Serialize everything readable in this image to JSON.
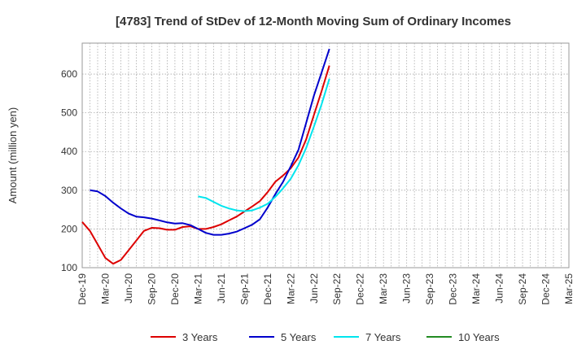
{
  "chart_data": {
    "type": "line",
    "title": "[4783]  Trend of StDev of 12-Month Moving Sum of Ordinary Incomes",
    "ylabel": "Amount (million yen)",
    "xlabel": "",
    "ylim": [
      100,
      680
    ],
    "yticks": [
      100,
      200,
      300,
      400,
      500,
      600
    ],
    "x_tick_labels": [
      "Dec-19",
      "Mar-20",
      "Jun-20",
      "Sep-20",
      "Dec-20",
      "Mar-21",
      "Jun-21",
      "Sep-21",
      "Dec-21",
      "Mar-22",
      "Jun-22",
      "Sep-22",
      "Dec-22",
      "Mar-23",
      "Jun-23",
      "Sep-23",
      "Dec-23",
      "Mar-24",
      "Jun-24",
      "Sep-24",
      "Dec-24",
      "Mar-25"
    ],
    "grid": true,
    "legend_position": "bottom",
    "series": [
      {
        "name": "3 Years",
        "color": "#dd0000",
        "points": [
          [
            0,
            218
          ],
          [
            1,
            195
          ],
          [
            2,
            160
          ],
          [
            3,
            125
          ],
          [
            4,
            110
          ],
          [
            5,
            120
          ],
          [
            6,
            145
          ],
          [
            7,
            170
          ],
          [
            8,
            195
          ],
          [
            9,
            203
          ],
          [
            10,
            202
          ],
          [
            11,
            198
          ],
          [
            12,
            198
          ],
          [
            13,
            205
          ],
          [
            14,
            207
          ],
          [
            15,
            200
          ],
          [
            16,
            200
          ],
          [
            17,
            205
          ],
          [
            18,
            212
          ],
          [
            19,
            222
          ],
          [
            20,
            232
          ],
          [
            21,
            245
          ],
          [
            22,
            258
          ],
          [
            23,
            272
          ],
          [
            24,
            295
          ],
          [
            25,
            322
          ],
          [
            26,
            338
          ],
          [
            27,
            357
          ],
          [
            28,
            385
          ],
          [
            29,
            432
          ],
          [
            30,
            495
          ],
          [
            31,
            557
          ],
          [
            32,
            622
          ]
        ]
      },
      {
        "name": "5 Years",
        "color": "#0000cc",
        "points": [
          [
            1,
            300
          ],
          [
            2,
            297
          ],
          [
            3,
            285
          ],
          [
            4,
            268
          ],
          [
            5,
            253
          ],
          [
            6,
            240
          ],
          [
            7,
            232
          ],
          [
            8,
            230
          ],
          [
            9,
            227
          ],
          [
            10,
            222
          ],
          [
            11,
            217
          ],
          [
            12,
            214
          ],
          [
            13,
            215
          ],
          [
            14,
            210
          ],
          [
            15,
            200
          ],
          [
            16,
            190
          ],
          [
            17,
            185
          ],
          [
            18,
            185
          ],
          [
            19,
            188
          ],
          [
            20,
            193
          ],
          [
            21,
            202
          ],
          [
            22,
            211
          ],
          [
            23,
            225
          ],
          [
            24,
            255
          ],
          [
            25,
            290
          ],
          [
            26,
            322
          ],
          [
            27,
            362
          ],
          [
            28,
            405
          ],
          [
            29,
            475
          ],
          [
            30,
            545
          ],
          [
            31,
            605
          ],
          [
            32,
            665
          ]
        ]
      },
      {
        "name": "7 Years",
        "color": "#00e5ee",
        "points": [
          [
            15,
            284
          ],
          [
            16,
            280
          ],
          [
            17,
            270
          ],
          [
            18,
            260
          ],
          [
            19,
            253
          ],
          [
            20,
            248
          ],
          [
            21,
            246
          ],
          [
            22,
            248
          ],
          [
            23,
            255
          ],
          [
            24,
            265
          ],
          [
            25,
            283
          ],
          [
            26,
            305
          ],
          [
            27,
            330
          ],
          [
            28,
            365
          ],
          [
            29,
            410
          ],
          [
            30,
            465
          ],
          [
            31,
            523
          ],
          [
            32,
            588
          ]
        ]
      },
      {
        "name": "10 Years",
        "color": "#228b22",
        "points": []
      }
    ]
  }
}
